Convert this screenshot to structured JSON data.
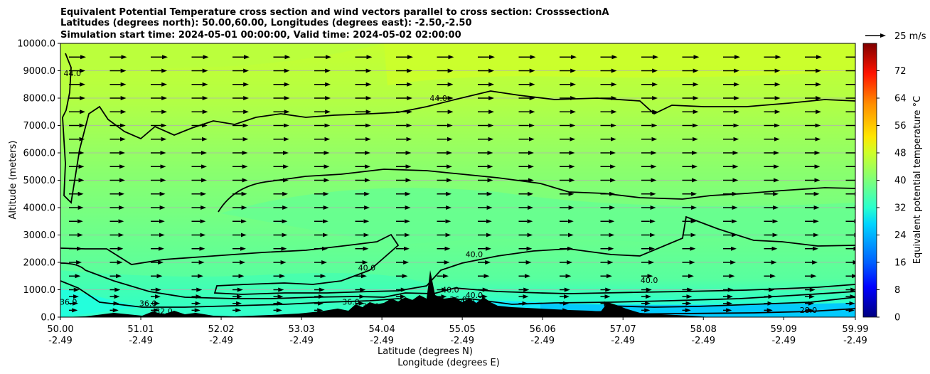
{
  "chart_data": {
    "type": "contour",
    "title_lines": [
      "Equivalent Potential Temperature cross section and wind vectors parallel to cross section: CrosssectionA",
      "Latitudes (degrees north): 50.00,60.00, Longitudes (degrees east): -2.50,-2.50",
      "Simulation start time: 2024-05-01 00:00:00, Valid time: 2024-05-02 02:00:00"
    ],
    "xlabel": "Latitude (degrees N)",
    "xlabel2": "Longitude (degrees E)",
    "ylabel": "Altitude (meters)",
    "xlim": [
      50.0,
      59.99
    ],
    "ylim": [
      0,
      10000
    ],
    "x_ticks": [
      {
        "lat": "50.00",
        "lon": "-2.49",
        "v": 50.0
      },
      {
        "lat": "51.01",
        "lon": "-2.49",
        "v": 51.01
      },
      {
        "lat": "52.02",
        "lon": "-2.49",
        "v": 52.02
      },
      {
        "lat": "53.03",
        "lon": "-2.49",
        "v": 53.03
      },
      {
        "lat": "54.04",
        "lon": "-2.49",
        "v": 54.04
      },
      {
        "lat": "55.05",
        "lon": "-2.49",
        "v": 55.05
      },
      {
        "lat": "56.06",
        "lon": "-2.49",
        "v": 56.06
      },
      {
        "lat": "57.07",
        "lon": "-2.49",
        "v": 57.07
      },
      {
        "lat": "58.08",
        "lon": "-2.49",
        "v": 58.08
      },
      {
        "lat": "59.09",
        "lon": "-2.49",
        "v": 59.09
      },
      {
        "lat": "59.99",
        "lon": "-2.49",
        "v": 59.99
      }
    ],
    "y_ticks": [
      "0.0",
      "1000.0",
      "2000.0",
      "3000.0",
      "4000.0",
      "5000.0",
      "6000.0",
      "7000.0",
      "8000.0",
      "9000.0",
      "10000.0"
    ],
    "y_tick_values": [
      0,
      1000,
      2000,
      3000,
      4000,
      5000,
      6000,
      7000,
      8000,
      9000,
      10000
    ],
    "colorbar": {
      "label": "Equivalent potential temperature °C",
      "ticks": [
        "0",
        "8",
        "16",
        "24",
        "32",
        "40",
        "48",
        "56",
        "64",
        "72"
      ],
      "tick_values": [
        0,
        8,
        16,
        24,
        32,
        40,
        48,
        56,
        64,
        72
      ],
      "range": [
        0,
        80
      ]
    },
    "quiver_key": {
      "label": "25 m/s",
      "value": 25
    },
    "wind_rows_m": [
      250,
      500,
      750,
      1000,
      1500,
      2000,
      2500,
      3000,
      3500,
      4000,
      4500,
      5000,
      5500,
      6000,
      6500,
      7000,
      7500,
      8000,
      8500,
      9000,
      9500
    ],
    "wind_speed_ms": [
      5,
      6,
      7,
      8,
      10,
      12,
      13,
      14,
      14,
      15,
      15,
      16,
      16,
      16,
      17,
      17,
      18,
      18,
      18,
      18,
      19
    ],
    "contour_labels": [
      {
        "text": "44.0",
        "x": 50.15,
        "y": 8800
      },
      {
        "text": "44.0",
        "x": 54.75,
        "y": 7900
      },
      {
        "text": "40.0",
        "x": 55.2,
        "y": 2200
      },
      {
        "text": "40.0",
        "x": 53.85,
        "y": 1700
      },
      {
        "text": "40.0",
        "x": 57.4,
        "y": 1250
      },
      {
        "text": "40.0",
        "x": 54.9,
        "y": 900
      },
      {
        "text": "40.0",
        "x": 55.2,
        "y": 700
      },
      {
        "text": "36.0",
        "x": 50.1,
        "y": 450
      },
      {
        "text": "36.0",
        "x": 51.1,
        "y": 400
      },
      {
        "text": "36.0",
        "x": 53.65,
        "y": 450
      },
      {
        "text": "36.0",
        "x": 55.0,
        "y": 550
      },
      {
        "text": "32.0",
        "x": 51.3,
        "y": 120
      },
      {
        "text": "32.0",
        "x": 53.9,
        "y": 300
      },
      {
        "text": "28.0",
        "x": 55.1,
        "y": 450
      },
      {
        "text": "28.0",
        "x": 54.6,
        "y": 200
      },
      {
        "text": "28.0",
        "x": 59.4,
        "y": 150
      }
    ]
  }
}
